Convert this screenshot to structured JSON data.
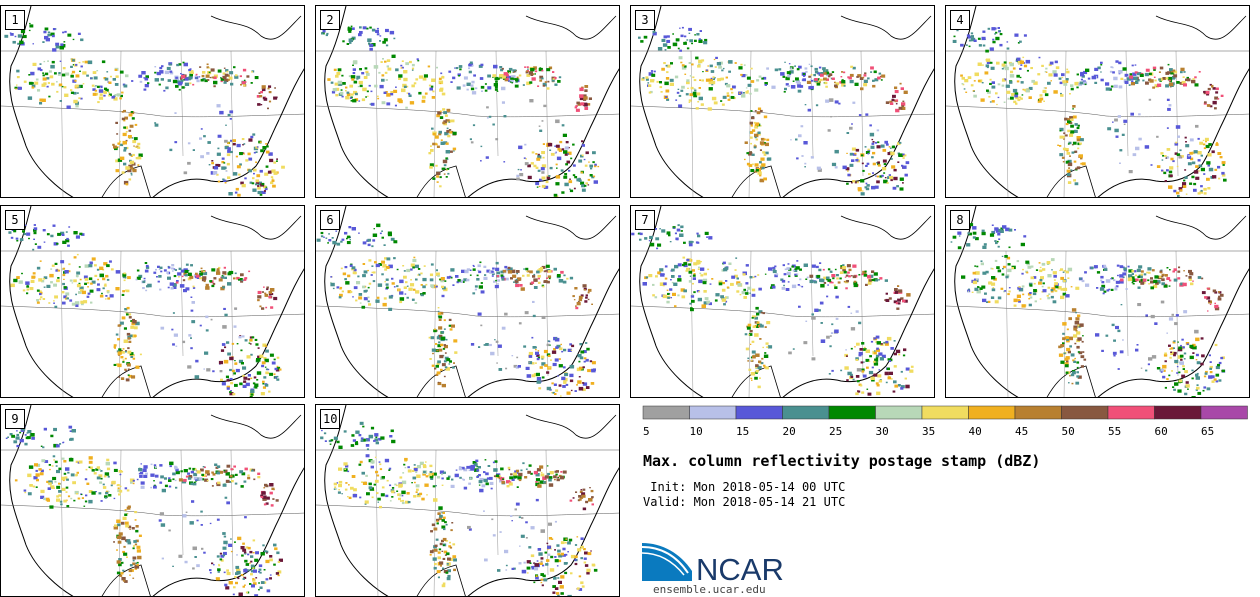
{
  "panels": [
    {
      "label": "1"
    },
    {
      "label": "2"
    },
    {
      "label": "3"
    },
    {
      "label": "4"
    },
    {
      "label": "5"
    },
    {
      "label": "6"
    },
    {
      "label": "7"
    },
    {
      "label": "8"
    },
    {
      "label": "9"
    },
    {
      "label": "10"
    }
  ],
  "colorbar": {
    "ticks": [
      "5",
      "10",
      "15",
      "20",
      "25",
      "30",
      "35",
      "40",
      "45",
      "50",
      "55",
      "60",
      "65"
    ],
    "colors": [
      "#a0a0a0",
      "#b8c0e8",
      "#5858d8",
      "#4a9090",
      "#008800",
      "#b8d8b8",
      "#f0dc60",
      "#f0b020",
      "#b88030",
      "#885840",
      "#f05078",
      "#6a1838",
      "#a848a8"
    ]
  },
  "title": "Max. column reflectivity postage stamp (dBZ)",
  "init_line": " Init: Mon 2018-05-14 00 UTC",
  "valid_line": "Valid: Mon 2018-05-14 21 UTC",
  "logo_text": "NCAR",
  "site": "ensemble.ucar.edu"
}
